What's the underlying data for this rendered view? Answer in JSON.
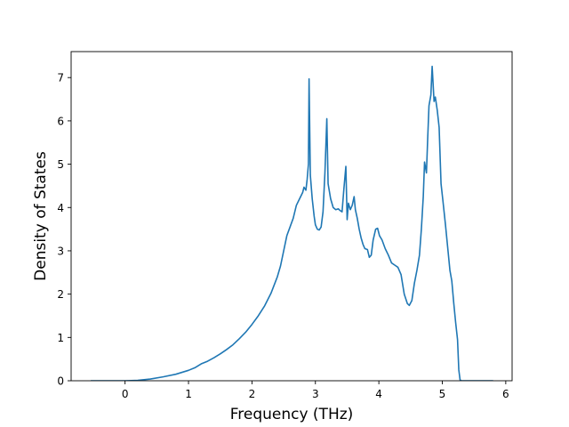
{
  "chart_data": {
    "type": "line",
    "title": "",
    "xlabel": "Frequency (THz)",
    "ylabel": "Density of States",
    "xlim": [
      -0.85,
      6.1
    ],
    "ylim": [
      0,
      7.6
    ],
    "x_ticks": [
      0,
      1,
      2,
      3,
      4,
      5,
      6
    ],
    "x_tick_labels": [
      "0",
      "1",
      "2",
      "3",
      "4",
      "5",
      "6"
    ],
    "y_ticks": [
      0,
      1,
      2,
      3,
      4,
      5,
      6,
      7
    ],
    "y_tick_labels": [
      "0",
      "1",
      "2",
      "3",
      "4",
      "5",
      "6",
      "7"
    ],
    "grid": false,
    "legend": "none",
    "series": [
      {
        "color": "#1f77b4",
        "points": [
          [
            -0.53,
            0.0
          ],
          [
            0.0,
            0.0
          ],
          [
            0.2,
            0.01
          ],
          [
            0.4,
            0.04
          ],
          [
            0.6,
            0.09
          ],
          [
            0.8,
            0.15
          ],
          [
            1.0,
            0.24
          ],
          [
            1.1,
            0.3
          ],
          [
            1.2,
            0.39
          ],
          [
            1.3,
            0.45
          ],
          [
            1.4,
            0.53
          ],
          [
            1.5,
            0.62
          ],
          [
            1.6,
            0.72
          ],
          [
            1.7,
            0.83
          ],
          [
            1.8,
            0.97
          ],
          [
            1.9,
            1.12
          ],
          [
            2.0,
            1.3
          ],
          [
            2.1,
            1.5
          ],
          [
            2.2,
            1.73
          ],
          [
            2.3,
            2.02
          ],
          [
            2.4,
            2.4
          ],
          [
            2.45,
            2.65
          ],
          [
            2.5,
            3.0
          ],
          [
            2.55,
            3.35
          ],
          [
            2.6,
            3.55
          ],
          [
            2.65,
            3.75
          ],
          [
            2.7,
            4.05
          ],
          [
            2.75,
            4.2
          ],
          [
            2.8,
            4.35
          ],
          [
            2.82,
            4.47
          ],
          [
            2.85,
            4.4
          ],
          [
            2.87,
            4.65
          ],
          [
            2.89,
            5.0
          ],
          [
            2.9,
            6.97
          ],
          [
            2.92,
            4.75
          ],
          [
            2.95,
            4.2
          ],
          [
            2.98,
            3.8
          ],
          [
            3.0,
            3.6
          ],
          [
            3.03,
            3.5
          ],
          [
            3.06,
            3.48
          ],
          [
            3.09,
            3.55
          ],
          [
            3.12,
            3.9
          ],
          [
            3.15,
            4.8
          ],
          [
            3.18,
            6.05
          ],
          [
            3.2,
            4.55
          ],
          [
            3.24,
            4.2
          ],
          [
            3.28,
            4.0
          ],
          [
            3.32,
            3.95
          ],
          [
            3.36,
            3.97
          ],
          [
            3.39,
            3.93
          ],
          [
            3.42,
            3.9
          ],
          [
            3.45,
            4.45
          ],
          [
            3.48,
            4.95
          ],
          [
            3.5,
            3.72
          ],
          [
            3.52,
            4.1
          ],
          [
            3.55,
            3.95
          ],
          [
            3.58,
            4.05
          ],
          [
            3.61,
            4.25
          ],
          [
            3.63,
            3.95
          ],
          [
            3.66,
            3.75
          ],
          [
            3.69,
            3.5
          ],
          [
            3.72,
            3.3
          ],
          [
            3.75,
            3.15
          ],
          [
            3.78,
            3.05
          ],
          [
            3.82,
            3.03
          ],
          [
            3.85,
            2.85
          ],
          [
            3.88,
            2.9
          ],
          [
            3.91,
            3.25
          ],
          [
            3.95,
            3.5
          ],
          [
            3.98,
            3.52
          ],
          [
            4.01,
            3.35
          ],
          [
            4.05,
            3.25
          ],
          [
            4.1,
            3.05
          ],
          [
            4.15,
            2.9
          ],
          [
            4.2,
            2.72
          ],
          [
            4.25,
            2.67
          ],
          [
            4.3,
            2.62
          ],
          [
            4.35,
            2.45
          ],
          [
            4.4,
            2.0
          ],
          [
            4.45,
            1.78
          ],
          [
            4.48,
            1.74
          ],
          [
            4.52,
            1.85
          ],
          [
            4.56,
            2.25
          ],
          [
            4.6,
            2.55
          ],
          [
            4.64,
            2.9
          ],
          [
            4.67,
            3.5
          ],
          [
            4.7,
            4.25
          ],
          [
            4.72,
            5.05
          ],
          [
            4.75,
            4.8
          ],
          [
            4.77,
            5.6
          ],
          [
            4.79,
            6.35
          ],
          [
            4.82,
            6.6
          ],
          [
            4.84,
            7.26
          ],
          [
            4.87,
            6.45
          ],
          [
            4.89,
            6.55
          ],
          [
            4.92,
            6.25
          ],
          [
            4.95,
            5.85
          ],
          [
            4.98,
            4.55
          ],
          [
            5.01,
            4.15
          ],
          [
            5.05,
            3.6
          ],
          [
            5.09,
            3.0
          ],
          [
            5.12,
            2.55
          ],
          [
            5.15,
            2.3
          ],
          [
            5.18,
            1.8
          ],
          [
            5.21,
            1.35
          ],
          [
            5.24,
            0.95
          ],
          [
            5.26,
            0.25
          ],
          [
            5.28,
            0.02
          ],
          [
            5.3,
            0.0
          ],
          [
            5.79,
            0.0
          ]
        ]
      }
    ]
  }
}
